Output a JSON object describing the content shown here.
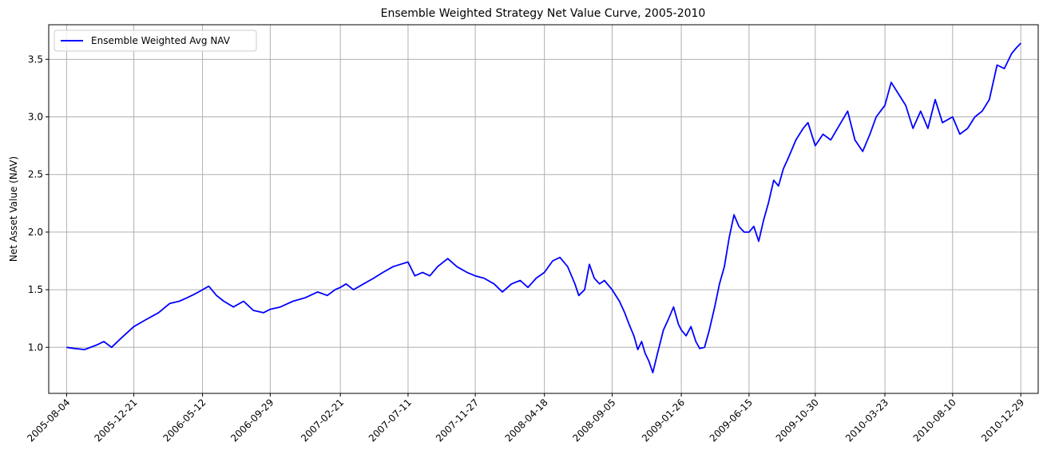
{
  "chart_data": {
    "type": "line",
    "title": "Ensemble Weighted Strategy Net Value Curve, 2005-2010",
    "xlabel": "",
    "ylabel": "Net Asset Value (NAV)",
    "x_axis_type": "date",
    "xlim": [
      "2005-06-28",
      "2011-02-03"
    ],
    "ylim": [
      0.6,
      3.8
    ],
    "x_ticks": [
      "2005-08-04",
      "2005-12-21",
      "2006-05-12",
      "2006-09-29",
      "2007-02-21",
      "2007-07-11",
      "2007-11-27",
      "2008-04-18",
      "2008-09-05",
      "2009-01-26",
      "2009-06-15",
      "2009-10-30",
      "2010-03-23",
      "2010-08-10",
      "2010-12-29"
    ],
    "y_ticks": [
      "1.0",
      "1.5",
      "2.0",
      "2.5",
      "3.0",
      "3.5"
    ],
    "grid": true,
    "legend_position": "upper-left",
    "colors": {
      "line": "#0000ff",
      "grid": "#b0b0b0"
    },
    "series": [
      {
        "name": "Ensemble Weighted Avg NAV",
        "x": [
          "2005-08-04",
          "2005-08-20",
          "2005-09-10",
          "2005-10-05",
          "2005-10-20",
          "2005-11-05",
          "2005-11-25",
          "2005-12-21",
          "2006-01-15",
          "2006-02-10",
          "2006-03-05",
          "2006-03-25",
          "2006-04-10",
          "2006-04-25",
          "2006-05-12",
          "2006-05-25",
          "2006-06-10",
          "2006-06-25",
          "2006-07-15",
          "2006-08-05",
          "2006-08-25",
          "2006-09-15",
          "2006-09-29",
          "2006-10-20",
          "2006-11-15",
          "2006-12-10",
          "2007-01-05",
          "2007-01-25",
          "2007-02-10",
          "2007-02-21",
          "2007-03-05",
          "2007-03-20",
          "2007-04-10",
          "2007-05-01",
          "2007-05-20",
          "2007-06-10",
          "2007-06-25",
          "2007-07-11",
          "2007-07-25",
          "2007-08-10",
          "2007-08-25",
          "2007-09-10",
          "2007-10-01",
          "2007-10-20",
          "2007-11-10",
          "2007-11-27",
          "2007-12-15",
          "2008-01-05",
          "2008-01-22",
          "2008-02-10",
          "2008-02-28",
          "2008-03-15",
          "2008-04-01",
          "2008-04-18",
          "2008-05-05",
          "2008-05-20",
          "2008-06-05",
          "2008-06-20",
          "2008-06-28",
          "2008-07-10",
          "2008-07-20",
          "2008-07-30",
          "2008-08-10",
          "2008-08-20",
          "2008-09-05",
          "2008-09-20",
          "2008-10-01",
          "2008-10-10",
          "2008-10-20",
          "2008-10-28",
          "2008-11-05",
          "2008-11-12",
          "2008-11-20",
          "2008-11-28",
          "2008-12-08",
          "2008-12-20",
          "2008-12-31",
          "2009-01-10",
          "2009-01-20",
          "2009-01-26",
          "2009-02-05",
          "2009-02-15",
          "2009-02-25",
          "2009-03-05",
          "2009-03-15",
          "2009-03-25",
          "2009-04-05",
          "2009-04-15",
          "2009-04-25",
          "2009-05-05",
          "2009-05-15",
          "2009-05-25",
          "2009-06-05",
          "2009-06-15",
          "2009-06-25",
          "2009-07-05",
          "2009-07-15",
          "2009-07-25",
          "2009-08-05",
          "2009-08-15",
          "2009-08-25",
          "2009-09-05",
          "2009-09-20",
          "2009-10-05",
          "2009-10-15",
          "2009-10-30",
          "2009-11-15",
          "2009-12-01",
          "2009-12-15",
          "2010-01-05",
          "2010-01-20",
          "2010-02-05",
          "2010-02-20",
          "2010-03-05",
          "2010-03-23",
          "2010-04-05",
          "2010-04-20",
          "2010-05-05",
          "2010-05-20",
          "2010-06-05",
          "2010-06-20",
          "2010-07-05",
          "2010-07-20",
          "2010-08-10",
          "2010-08-25",
          "2010-09-10",
          "2010-09-25",
          "2010-10-10",
          "2010-10-25",
          "2010-11-10",
          "2010-11-25",
          "2010-12-10",
          "2010-12-20",
          "2010-12-29"
        ],
        "y": [
          1.0,
          0.99,
          0.98,
          1.02,
          1.05,
          1.0,
          1.08,
          1.18,
          1.24,
          1.3,
          1.38,
          1.4,
          1.43,
          1.46,
          1.5,
          1.53,
          1.45,
          1.4,
          1.35,
          1.4,
          1.32,
          1.3,
          1.33,
          1.35,
          1.4,
          1.43,
          1.48,
          1.45,
          1.5,
          1.52,
          1.55,
          1.5,
          1.55,
          1.6,
          1.65,
          1.7,
          1.72,
          1.74,
          1.62,
          1.65,
          1.62,
          1.7,
          1.77,
          1.7,
          1.65,
          1.62,
          1.6,
          1.55,
          1.48,
          1.55,
          1.58,
          1.52,
          1.6,
          1.65,
          1.75,
          1.78,
          1.7,
          1.55,
          1.45,
          1.5,
          1.72,
          1.6,
          1.55,
          1.58,
          1.5,
          1.4,
          1.3,
          1.2,
          1.1,
          0.98,
          1.05,
          0.95,
          0.88,
          0.78,
          0.95,
          1.15,
          1.25,
          1.35,
          1.2,
          1.15,
          1.1,
          1.18,
          1.05,
          0.99,
          1.0,
          1.15,
          1.35,
          1.55,
          1.7,
          1.95,
          2.15,
          2.05,
          2.0,
          2.0,
          2.05,
          1.92,
          2.1,
          2.25,
          2.45,
          2.4,
          2.55,
          2.65,
          2.8,
          2.9,
          2.95,
          2.75,
          2.85,
          2.8,
          2.9,
          3.05,
          2.8,
          2.7,
          2.85,
          3.0,
          3.1,
          3.3,
          3.2,
          3.1,
          2.9,
          3.05,
          2.9,
          3.15,
          2.95,
          3.0,
          2.85,
          2.9,
          3.0,
          3.05,
          3.15,
          3.45,
          3.42,
          3.55,
          3.6,
          3.64
        ]
      }
    ]
  }
}
